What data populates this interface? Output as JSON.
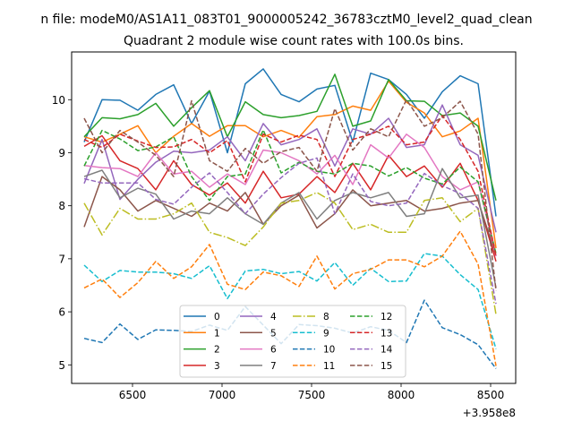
{
  "chart_data": {
    "type": "line",
    "suptitle": "n file: modeM0/AS1A11_083T01_9000005242_36783cztM0_level2_quad_clean",
    "title": "Quadrant 2 module wise count rates with 100.0s bins.",
    "xlabel": "",
    "ylabel": "",
    "x_offset_label": "+3.958e8",
    "xlim": [
      6160,
      8640
    ],
    "ylim": [
      4.65,
      10.9
    ],
    "xticks": [
      6500,
      7000,
      7500,
      8000,
      8500
    ],
    "xtick_labels": [
      "6500",
      "7000",
      "7500",
      "8000",
      "8500"
    ],
    "yticks": [
      5,
      6,
      7,
      8,
      9,
      10
    ],
    "ytick_labels": [
      "5",
      "6",
      "7",
      "8",
      "9",
      "10"
    ],
    "grid": false,
    "legend_position": "lower-center",
    "x": [
      6230,
      6330,
      6430,
      6530,
      6630,
      6730,
      6830,
      6930,
      7030,
      7130,
      7230,
      7330,
      7430,
      7530,
      7630,
      7730,
      7830,
      7930,
      8030,
      8130,
      8230,
      8330,
      8430,
      8530
    ],
    "series": [
      {
        "name": "0",
        "color": "#1f77b4",
        "dash": "solid",
        "values": [
          9.2,
          10.0,
          9.99,
          9.8,
          10.1,
          10.28,
          9.55,
          10.16,
          9.0,
          10.3,
          10.58,
          10.1,
          9.96,
          10.2,
          10.27,
          9.2,
          10.5,
          10.38,
          10.1,
          9.65,
          10.15,
          10.45,
          10.3,
          7.8
        ]
      },
      {
        "name": "1",
        "color": "#ff7f0e",
        "dash": "solid",
        "values": [
          9.3,
          9.2,
          9.35,
          9.51,
          9.0,
          9.31,
          9.55,
          9.31,
          9.51,
          9.51,
          9.3,
          9.42,
          9.29,
          9.68,
          9.72,
          9.88,
          9.8,
          10.35,
          9.95,
          9.75,
          9.3,
          9.41,
          9.65,
          7.2
        ]
      },
      {
        "name": "2",
        "color": "#2ca02c",
        "dash": "solid",
        "values": [
          9.3,
          9.66,
          9.64,
          9.72,
          9.93,
          9.5,
          9.85,
          10.17,
          9.3,
          9.96,
          9.72,
          9.66,
          9.7,
          9.78,
          10.48,
          9.5,
          9.6,
          10.38,
          9.98,
          9.97,
          9.7,
          9.75,
          9.5,
          8.1
        ]
      },
      {
        "name": "3",
        "color": "#d62728",
        "dash": "solid",
        "values": [
          9.12,
          9.32,
          8.85,
          8.7,
          8.3,
          8.85,
          8.4,
          8.2,
          8.43,
          8.05,
          8.65,
          8.15,
          8.22,
          8.55,
          8.25,
          8.8,
          8.3,
          8.95,
          8.55,
          8.75,
          8.35,
          8.8,
          8.1,
          6.95
        ]
      },
      {
        "name": "4",
        "color": "#9467bd",
        "dash": "solid",
        "values": [
          8.42,
          9.25,
          8.12,
          8.5,
          8.82,
          9.03,
          9.0,
          9.05,
          9.3,
          8.85,
          9.55,
          9.15,
          9.25,
          9.45,
          8.75,
          9.45,
          9.35,
          9.65,
          9.1,
          9.15,
          9.9,
          9.15,
          8.95,
          7.5
        ]
      },
      {
        "name": "5",
        "color": "#8c564b",
        "dash": "solid",
        "values": [
          7.6,
          8.55,
          8.3,
          7.9,
          8.1,
          7.95,
          7.8,
          8.05,
          7.9,
          8.25,
          7.65,
          8.0,
          8.2,
          7.58,
          7.85,
          8.3,
          8.0,
          8.05,
          8.1,
          7.9,
          7.95,
          8.05,
          8.1,
          7.05
        ]
      },
      {
        "name": "6",
        "color": "#e377c2",
        "dash": "solid",
        "values": [
          8.76,
          8.72,
          8.7,
          8.55,
          9.0,
          8.6,
          8.65,
          8.35,
          8.6,
          8.4,
          9.05,
          9.0,
          8.85,
          8.6,
          8.95,
          8.4,
          9.15,
          8.9,
          9.35,
          9.1,
          8.55,
          8.3,
          8.45,
          7.05
        ]
      },
      {
        "name": "7",
        "color": "#7f7f7f",
        "dash": "solid",
        "values": [
          8.55,
          8.67,
          8.15,
          8.33,
          8.22,
          7.75,
          7.9,
          7.85,
          8.15,
          7.85,
          7.65,
          8.05,
          8.25,
          7.75,
          8.1,
          8.25,
          8.15,
          8.25,
          7.8,
          7.85,
          8.7,
          8.15,
          8.2,
          6.45
        ]
      },
      {
        "name": "8",
        "color": "#bcbd22",
        "dash": "dash-dot",
        "values": [
          8.05,
          7.45,
          7.95,
          7.75,
          7.75,
          7.85,
          8.05,
          7.5,
          7.4,
          7.25,
          7.6,
          8.05,
          8.1,
          8.25,
          8.05,
          7.55,
          7.65,
          7.5,
          7.5,
          8.1,
          8.15,
          7.7,
          7.95,
          5.95
        ]
      },
      {
        "name": "9",
        "color": "#17becf",
        "dash": "dash",
        "values": [
          6.88,
          6.57,
          6.78,
          6.75,
          6.75,
          6.72,
          6.63,
          6.87,
          6.25,
          6.77,
          6.8,
          6.72,
          6.76,
          6.58,
          6.93,
          6.5,
          6.82,
          6.57,
          6.58,
          7.1,
          7.05,
          6.7,
          6.42,
          5.3
        ]
      },
      {
        "name": "10",
        "color": "#1f77b4",
        "dash": "dash",
        "values": [
          5.5,
          5.42,
          5.77,
          5.48,
          5.66,
          5.65,
          5.63,
          5.75,
          5.65,
          6.1,
          5.75,
          5.4,
          5.76,
          5.74,
          5.69,
          5.6,
          5.72,
          5.65,
          5.42,
          6.22,
          5.7,
          5.57,
          5.38,
          4.93
        ]
      },
      {
        "name": "11",
        "color": "#ff7f0e",
        "dash": "dash",
        "values": [
          6.45,
          6.62,
          6.27,
          6.55,
          6.95,
          6.63,
          6.85,
          7.27,
          6.52,
          6.42,
          6.75,
          6.68,
          6.48,
          7.05,
          6.43,
          6.72,
          6.8,
          6.98,
          6.98,
          6.85,
          7.05,
          7.52,
          6.9,
          4.98
        ]
      },
      {
        "name": "12",
        "color": "#2ca02c",
        "dash": "dash",
        "values": [
          8.75,
          9.42,
          9.26,
          9.04,
          9.11,
          9.3,
          8.55,
          8.1,
          8.55,
          8.6,
          9.43,
          8.62,
          8.82,
          8.65,
          8.6,
          8.8,
          8.75,
          8.56,
          8.72,
          8.52,
          8.41,
          8.73,
          8.45,
          7.1
        ]
      },
      {
        "name": "13",
        "color": "#d62728",
        "dash": "dash",
        "values": [
          9.25,
          9.1,
          9.35,
          9.22,
          9.1,
          9.11,
          9.25,
          9.0,
          9.23,
          8.45,
          9.35,
          9.2,
          9.33,
          9.25,
          8.55,
          9.25,
          9.35,
          9.5,
          9.15,
          9.2,
          9.7,
          9.25,
          8.65,
          7.05
        ]
      },
      {
        "name": "14",
        "color": "#9467bd",
        "dash": "dash",
        "values": [
          8.51,
          8.43,
          8.43,
          8.43,
          8.12,
          8.03,
          8.35,
          8.62,
          8.25,
          7.85,
          8.22,
          8.53,
          8.8,
          8.9,
          7.85,
          8.6,
          8.08,
          8.0,
          8.05,
          8.61,
          8.38,
          8.23,
          7.95,
          6.15
        ]
      },
      {
        "name": "15",
        "color": "#8c564b",
        "dash": "dash",
        "values": [
          9.65,
          9.0,
          9.42,
          9.2,
          8.95,
          8.55,
          9.98,
          8.85,
          8.65,
          9.08,
          8.8,
          9.02,
          9.1,
          8.65,
          9.83,
          9.05,
          9.45,
          9.3,
          10.0,
          9.5,
          9.66,
          9.97,
          9.35,
          6.4
        ]
      }
    ]
  }
}
